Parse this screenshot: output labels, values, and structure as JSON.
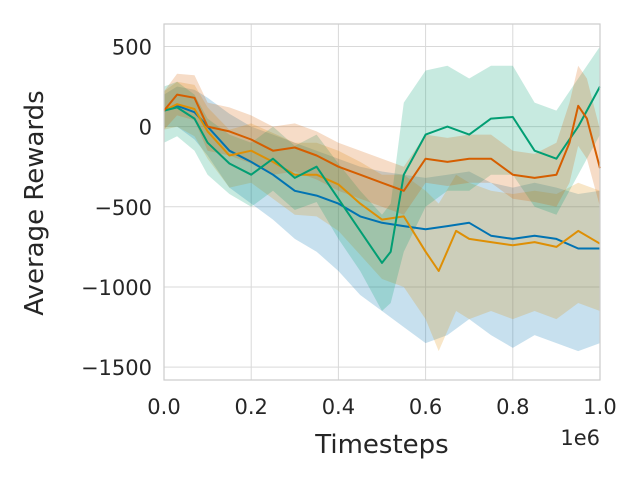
{
  "chart_data": {
    "type": "line",
    "title": "",
    "xlabel": "Timesteps",
    "ylabel": "Average Rewards",
    "x_exponent_label": "1e6",
    "xlim": [
      0,
      1.0
    ],
    "ylim": [
      -1580,
      640
    ],
    "x_ticks": [
      0.0,
      0.2,
      0.4,
      0.6,
      0.8,
      1.0
    ],
    "x_tick_labels": [
      "0.0",
      "0.2",
      "0.4",
      "0.6",
      "0.8",
      "1.0"
    ],
    "y_ticks": [
      500,
      0,
      -500,
      -1000,
      -1500
    ],
    "y_tick_labels": [
      "500",
      "0",
      "−500",
      "−1000",
      "−1500"
    ],
    "grid": true,
    "legend": "none",
    "series": [
      {
        "color": "#0173b2",
        "x": [
          0.0,
          0.03,
          0.07,
          0.1,
          0.15,
          0.2,
          0.25,
          0.3,
          0.35,
          0.4,
          0.45,
          0.5,
          0.55,
          0.6,
          0.65,
          0.7,
          0.75,
          0.8,
          0.85,
          0.9,
          0.95,
          1.0
        ],
        "y": [
          100,
          130,
          90,
          0,
          -150,
          -220,
          -300,
          -400,
          -430,
          -480,
          -560,
          -600,
          -620,
          -640,
          -620,
          -600,
          -680,
          -700,
          -680,
          -700,
          -760,
          -760
        ],
        "upper": [
          200,
          250,
          230,
          180,
          80,
          0,
          -50,
          -100,
          -150,
          -200,
          -250,
          -280,
          -300,
          -320,
          -300,
          -280,
          -350,
          -380,
          -350,
          -380,
          -420,
          -400
        ],
        "lower": [
          0,
          0,
          -80,
          -180,
          -380,
          -480,
          -580,
          -700,
          -780,
          -900,
          -1050,
          -1150,
          -1250,
          -1350,
          -1300,
          -1200,
          -1300,
          -1380,
          -1300,
          -1350,
          -1400,
          -1350
        ]
      },
      {
        "color": "#de8f05",
        "x": [
          0.0,
          0.03,
          0.07,
          0.1,
          0.15,
          0.2,
          0.25,
          0.3,
          0.35,
          0.4,
          0.45,
          0.5,
          0.55,
          0.6,
          0.63,
          0.67,
          0.7,
          0.75,
          0.8,
          0.85,
          0.9,
          0.95,
          1.0
        ],
        "y": [
          100,
          140,
          110,
          -30,
          -180,
          -150,
          -220,
          -300,
          -300,
          -360,
          -480,
          -580,
          -560,
          -780,
          -900,
          -650,
          -700,
          -720,
          -740,
          -720,
          -750,
          -650,
          -730
        ],
        "upper": [
          220,
          280,
          260,
          120,
          -20,
          20,
          -40,
          -100,
          -100,
          -150,
          -220,
          -300,
          -300,
          -400,
          -480,
          -300,
          -350,
          -400,
          -420,
          -400,
          -420,
          -350,
          -400
        ],
        "lower": [
          -20,
          0,
          -60,
          -200,
          -380,
          -350,
          -450,
          -550,
          -560,
          -650,
          -800,
          -950,
          -1000,
          -1200,
          -1400,
          -1150,
          -1200,
          -1150,
          -1200,
          -1150,
          -1200,
          -1100,
          -1150
        ]
      },
      {
        "color": "#029e73",
        "x": [
          0.0,
          0.03,
          0.07,
          0.1,
          0.15,
          0.2,
          0.25,
          0.3,
          0.35,
          0.4,
          0.45,
          0.5,
          0.52,
          0.55,
          0.6,
          0.65,
          0.7,
          0.75,
          0.8,
          0.85,
          0.9,
          0.95,
          1.0
        ],
        "y": [
          100,
          120,
          50,
          -100,
          -230,
          -300,
          -200,
          -320,
          -250,
          -450,
          -650,
          -850,
          -780,
          -300,
          -50,
          0,
          -50,
          50,
          60,
          -150,
          -200,
          0,
          250
        ],
        "upper": [
          250,
          280,
          200,
          50,
          -50,
          -100,
          0,
          -120,
          -50,
          -230,
          -400,
          -550,
          -480,
          150,
          350,
          380,
          300,
          380,
          380,
          150,
          100,
          300,
          500
        ],
        "lower": [
          -100,
          -60,
          -150,
          -300,
          -420,
          -500,
          -400,
          -520,
          -470,
          -700,
          -900,
          -1150,
          -1100,
          -780,
          -500,
          -400,
          -400,
          -300,
          -300,
          -500,
          -550,
          -300,
          -50
        ]
      },
      {
        "color": "#d55e00",
        "x": [
          0.0,
          0.03,
          0.07,
          0.1,
          0.15,
          0.2,
          0.25,
          0.3,
          0.35,
          0.4,
          0.45,
          0.5,
          0.55,
          0.6,
          0.65,
          0.7,
          0.75,
          0.8,
          0.85,
          0.9,
          0.93,
          0.95,
          0.97,
          1.0
        ],
        "y": [
          100,
          200,
          180,
          0,
          -30,
          -80,
          -150,
          -130,
          -180,
          -250,
          -300,
          -350,
          -400,
          -200,
          -220,
          -200,
          -200,
          -300,
          -320,
          -300,
          -100,
          130,
          50,
          -260
        ],
        "upper": [
          220,
          330,
          320,
          150,
          120,
          70,
          0,
          20,
          -30,
          -100,
          -150,
          -200,
          -250,
          -50,
          -70,
          -50,
          -50,
          -150,
          -170,
          -100,
          150,
          380,
          300,
          -20
        ],
        "lower": [
          -20,
          70,
          40,
          -150,
          -180,
          -230,
          -300,
          -280,
          -330,
          -400,
          -450,
          -500,
          -550,
          -350,
          -370,
          -350,
          -350,
          -450,
          -470,
          -500,
          -350,
          -120,
          -200,
          -500
        ]
      }
    ]
  }
}
